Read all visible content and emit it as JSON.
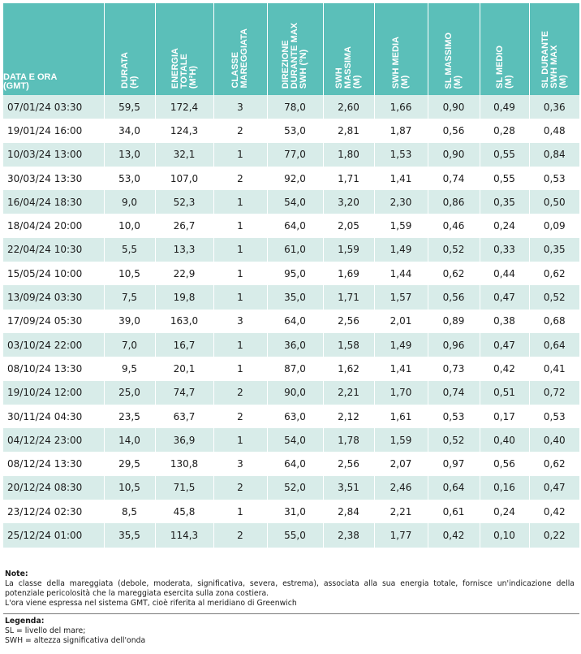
{
  "table": {
    "headers": [
      "DATA E ORA\n(GMT)",
      "DURATA\n(h)",
      "ENERGIA\nTOTALE\n(m²h)",
      "CLASSE\nMAREGGIATA",
      "DIREZIONE\nDURANTE MAX\nSWH (°N)",
      "SWH\nMASSIMA\n(m)",
      "SWH MEDIA\n(m)",
      "SL MASSIMO\n(m)",
      "SL MEDIO\n(m)",
      "SL DURANTE\nSWH MAX\n(m)"
    ],
    "rows": [
      [
        "07/01/24 03:30",
        "59,5",
        "172,4",
        "3",
        "78,0",
        "2,60",
        "1,66",
        "0,90",
        "0,49",
        "0,36"
      ],
      [
        "19/01/24 16:00",
        "34,0",
        "124,3",
        "2",
        "53,0",
        "2,81",
        "1,87",
        "0,56",
        "0,28",
        "0,48"
      ],
      [
        "10/03/24 13:00",
        "13,0",
        "32,1",
        "1",
        "77,0",
        "1,80",
        "1,53",
        "0,90",
        "0,55",
        "0,84"
      ],
      [
        "30/03/24 13:30",
        "53,0",
        "107,0",
        "2",
        "92,0",
        "1,71",
        "1,41",
        "0,74",
        "0,55",
        "0,53"
      ],
      [
        "16/04/24 18:30",
        "9,0",
        "52,3",
        "1",
        "54,0",
        "3,20",
        "2,30",
        "0,86",
        "0,35",
        "0,50"
      ],
      [
        "18/04/24 20:00",
        "10,0",
        "26,7",
        "1",
        "64,0",
        "2,05",
        "1,59",
        "0,46",
        "0,24",
        "0,09"
      ],
      [
        "22/04/24 10:30",
        "5,5",
        "13,3",
        "1",
        "61,0",
        "1,59",
        "1,49",
        "0,52",
        "0,33",
        "0,35"
      ],
      [
        "15/05/24 10:00",
        "10,5",
        "22,9",
        "1",
        "95,0",
        "1,69",
        "1,44",
        "0,62",
        "0,44",
        "0,62"
      ],
      [
        "13/09/24 03:30",
        "7,5",
        "19,8",
        "1",
        "35,0",
        "1,71",
        "1,57",
        "0,56",
        "0,47",
        "0,52"
      ],
      [
        "17/09/24 05:30",
        "39,0",
        "163,0",
        "3",
        "64,0",
        "2,56",
        "2,01",
        "0,89",
        "0,38",
        "0,68"
      ],
      [
        "03/10/24 22:00",
        "7,0",
        "16,7",
        "1",
        "36,0",
        "1,58",
        "1,49",
        "0,96",
        "0,47",
        "0,64"
      ],
      [
        "08/10/24 13:30",
        "9,5",
        "20,1",
        "1",
        "87,0",
        "1,62",
        "1,41",
        "0,73",
        "0,42",
        "0,41"
      ],
      [
        "19/10/24 12:00",
        "25,0",
        "74,7",
        "2",
        "90,0",
        "2,21",
        "1,70",
        "0,74",
        "0,51",
        "0,72"
      ],
      [
        "30/11/24 04:30",
        "23,5",
        "63,7",
        "2",
        "63,0",
        "2,12",
        "1,61",
        "0,53",
        "0,17",
        "0,53"
      ],
      [
        "04/12/24 23:00",
        "14,0",
        "36,9",
        "1",
        "54,0",
        "1,78",
        "1,59",
        "0,52",
        "0,40",
        "0,40"
      ],
      [
        "08/12/24 13:30",
        "29,5",
        "130,8",
        "3",
        "64,0",
        "2,56",
        "2,07",
        "0,97",
        "0,56",
        "0,62"
      ],
      [
        "20/12/24 08:30",
        "10,5",
        "71,5",
        "2",
        "52,0",
        "3,51",
        "2,46",
        "0,64",
        "0,16",
        "0,47"
      ],
      [
        "23/12/24 02:30",
        "8,5",
        "45,8",
        "1",
        "31,0",
        "2,84",
        "2,21",
        "0,61",
        "0,24",
        "0,42"
      ],
      [
        "25/12/24 01:00",
        "35,5",
        "114,3",
        "2",
        "55,0",
        "2,38",
        "1,77",
        "0,42",
        "0,10",
        "0,22"
      ]
    ]
  },
  "notes": {
    "title": "Note:",
    "lines": [
      "La classe della mareggiata (debole, moderata, significativa, severa, estrema), associata alla sua energia totale, fornisce un'indicazione della potenziale pericolosità che la mareggiata esercita sulla zona costiera.",
      "L'ora viene espressa nel sistema GMT, cioè riferita al meridiano di Greenwich"
    ]
  },
  "legend": {
    "title": "Legenda:",
    "lines": [
      "SL = livello del mare;",
      "SWH = altezza significativa dell'onda"
    ]
  },
  "colors": {
    "header_bg": "#5bbfb9",
    "stripe_bg": "#d8ece9"
  }
}
